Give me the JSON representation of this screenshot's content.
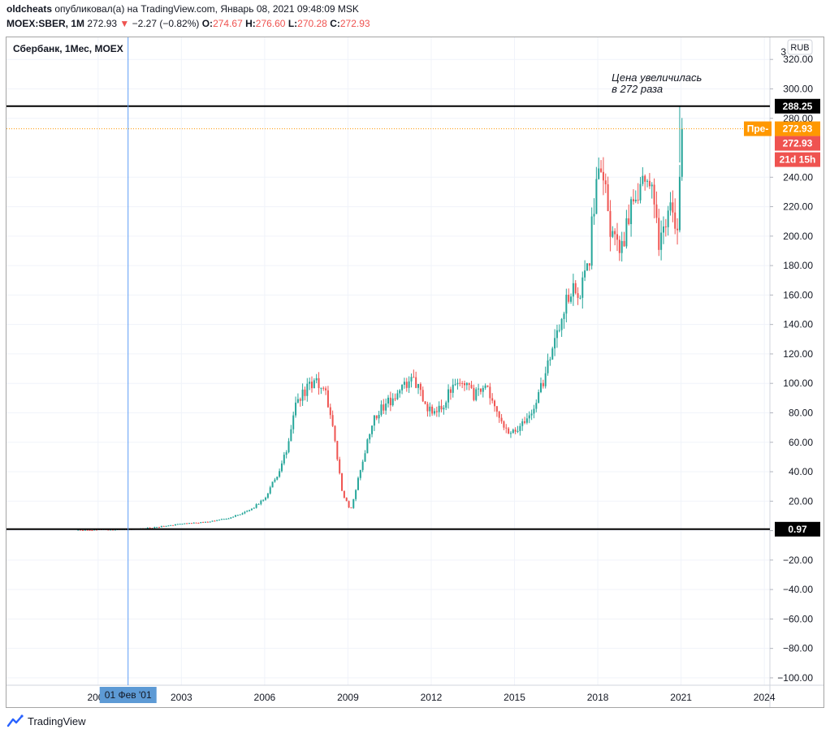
{
  "header": {
    "line1": {
      "author": "oldcheats",
      "rest": " опубликовал(а) на TradingView.com, Январь 08, 2021 09:48:09 MSK"
    },
    "line2": {
      "symbol": "MOEX:SBER, 1M",
      "price": "272.93",
      "arrow": "▼",
      "change": "−2.27 (−0.82%)",
      "o_label": "O:",
      "o": "274.67",
      "h_label": "H:",
      "h": "276.60",
      "l_label": "L:",
      "l": "270.28",
      "c_label": "C:",
      "c": "272.93"
    }
  },
  "legend": "Сбербанк, 1Мес, MOEX",
  "footer": {
    "brand": "TradingView"
  },
  "colors": {
    "up": "#26a69a",
    "down": "#ef5350",
    "axis_text": "#131722",
    "grid": "#f0f3fa",
    "accent": "#ff9800",
    "crosshair": "#5b9cf6"
  },
  "chart_data": {
    "type": "candlestick",
    "title": "Сбербанк, 1Мес, MOEX",
    "currency": "RUB",
    "y_ticks": [
      320,
      300,
      280,
      240,
      220,
      200,
      180,
      160,
      140,
      120,
      100,
      80,
      60,
      40,
      20,
      0,
      -20,
      -40,
      -60,
      -80,
      -100
    ],
    "y_tick_labels": [
      "320.00",
      "300.00",
      "280.00",
      "240.00",
      "220.00",
      "200.00",
      "180.00",
      "160.00",
      "140.00",
      "120.00",
      "100.00",
      "80.00",
      "60.00",
      "40.00",
      "20.00",
      "0.00",
      "−20.00",
      "−40.00",
      "−60.00",
      "−80.00",
      "−100.00"
    ],
    "y_range": [
      -105,
      335
    ],
    "y_top_partial": "3",
    "x_ticks": [
      2000,
      2003,
      2006,
      2009,
      2012,
      2015,
      2018,
      2021,
      2024
    ],
    "x_tick_labels": [
      "2000",
      "2003",
      "2006",
      "2009",
      "2012",
      "2015",
      "2018",
      "2021",
      "2024"
    ],
    "x_range": [
      1996.7,
      2024.2
    ],
    "crosshair": {
      "x": 2001.08,
      "label": "01 Фев '01"
    },
    "hlines": [
      {
        "y": 288.25,
        "label": "288.25"
      },
      {
        "y": 0.97,
        "label": "0.97"
      }
    ],
    "price_line": {
      "y": 272.93,
      "labels": [
        "Пре-",
        "272.93",
        "272.93",
        "21d 15h"
      ]
    },
    "annotation": {
      "x": 2018.5,
      "y": 302,
      "text": [
        "Цена увеличилась",
        "в 272 раза"
      ]
    },
    "keypoints": [
      [
        1999.2,
        0.5
      ],
      [
        2000.5,
        0.7
      ],
      [
        2001.2,
        0.9
      ],
      [
        2002.0,
        2.0
      ],
      [
        2002.5,
        3.5
      ],
      [
        2003.0,
        4.5
      ],
      [
        2004.0,
        6.0
      ],
      [
        2004.8,
        9.0
      ],
      [
        2005.5,
        14.0
      ],
      [
        2006.0,
        22.0
      ],
      [
        2006.5,
        40.0
      ],
      [
        2006.9,
        60.0
      ],
      [
        2007.1,
        88.0
      ],
      [
        2007.5,
        95.0
      ],
      [
        2007.9,
        102.0
      ],
      [
        2008.2,
        92.0
      ],
      [
        2008.5,
        65.0
      ],
      [
        2008.8,
        25.0
      ],
      [
        2009.1,
        14.0
      ],
      [
        2009.5,
        45.0
      ],
      [
        2009.9,
        75.0
      ],
      [
        2010.3,
        85.0
      ],
      [
        2010.8,
        92.0
      ],
      [
        2011.3,
        105.0
      ],
      [
        2011.7,
        90.0
      ],
      [
        2012.0,
        80.0
      ],
      [
        2012.5,
        88.0
      ],
      [
        2013.0,
        105.0
      ],
      [
        2013.5,
        92.0
      ],
      [
        2014.0,
        100.0
      ],
      [
        2014.3,
        82.0
      ],
      [
        2014.8,
        68.0
      ],
      [
        2015.1,
        70.0
      ],
      [
        2015.5,
        75.0
      ],
      [
        2016.0,
        100.0
      ],
      [
        2016.5,
        135.0
      ],
      [
        2017.0,
        165.0
      ],
      [
        2017.3,
        160.0
      ],
      [
        2017.7,
        185.0
      ],
      [
        2018.0,
        255.0
      ],
      [
        2018.25,
        238.0
      ],
      [
        2018.5,
        200.0
      ],
      [
        2018.8,
        185.0
      ],
      [
        2019.2,
        220.0
      ],
      [
        2019.6,
        232.0
      ],
      [
        2019.95,
        245.0
      ],
      [
        2020.2,
        195.0
      ],
      [
        2020.6,
        215.0
      ],
      [
        2020.85,
        205.0
      ],
      [
        2021.0,
        272.93
      ]
    ]
  }
}
